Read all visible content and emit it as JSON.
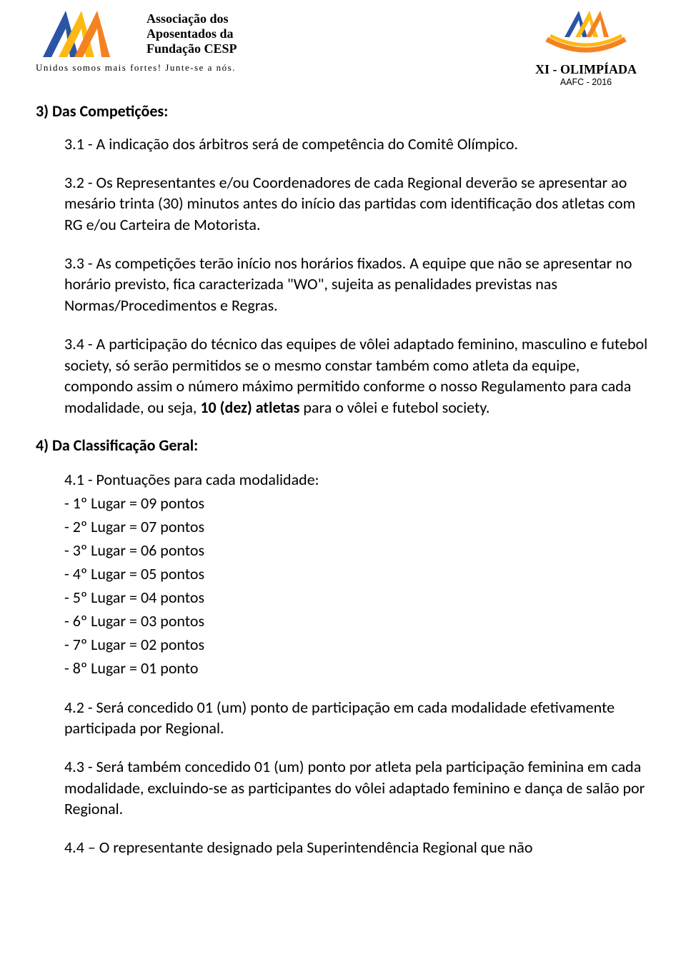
{
  "header": {
    "assoc_line1": "Associação dos",
    "assoc_line2": "Aposentados da",
    "assoc_line3": "Fundação CESP",
    "slogan": "Unidos somos mais fortes! Junte-se a nós.",
    "olimpiada_title": "XI - OLIMPÍADA",
    "olimpiada_sub": "AAFC - 2016"
  },
  "logo_left": {
    "color_blue": "#2b55a4",
    "color_orange": "#f58220",
    "color_yellow": "#fdb913"
  },
  "logo_right": {
    "stroke_blue": "#2b55a4",
    "stroke_orange": "#f58220",
    "stroke_yellow": "#fdb913",
    "arc_orange": "#f58220",
    "arc_yellow": "#fdb913"
  },
  "section3": {
    "heading": "3) Das Competições:",
    "p31": "3.1 - A indicação dos árbitros será de competência do Comitê Olímpico.",
    "p32": "3.2 - Os Representantes e/ou Coordenadores de cada Regional deverão se apresentar ao mesário trinta (30) minutos antes do início das partidas com identificação dos atletas com RG e/ou Carteira de Motorista.",
    "p33": "3.3 - As competições terão início nos horários fixados. A equipe que não se apresentar no horário previsto, fica caracterizada \"WO\", sujeita as penalidades previstas nas Normas/Procedimentos e Regras.",
    "p34_a": "3.4 - A participação do técnico das equipes de vôlei adaptado feminino, masculino e futebol society, só serão permitidos se o mesmo constar também como atleta da equipe, compondo assim o número máximo permitido conforme o nosso Regulamento para cada modalidade, ou seja, ",
    "p34_bold": "10 (dez) atletas",
    "p34_b": " para o vôlei e futebol society."
  },
  "section4": {
    "heading": "4) Da Classificação Geral:",
    "p41_intro": "4.1 - Pontuações para cada modalidade:",
    "points": [
      "- 1º Lugar = 09 pontos",
      "- 2º Lugar = 07 pontos",
      "- 3º Lugar = 06 pontos",
      "- 4º Lugar = 05 pontos",
      "- 5º Lugar = 04 pontos",
      "- 6º Lugar = 03 pontos",
      "- 7º Lugar = 02 pontos",
      "- 8º Lugar = 01 ponto"
    ],
    "p42": "4.2 - Será concedido 01 (um) ponto de participação em cada modalidade efetivamente participada por Regional.",
    "p43": "4.3 - Será também concedido 01 (um) ponto por atleta pela participação feminina em cada modalidade, excluindo-se as participantes do vôlei adaptado feminino e dança de salão por Regional.",
    "p44": "4.4 – O representante designado pela Superintendência Regional que não"
  }
}
